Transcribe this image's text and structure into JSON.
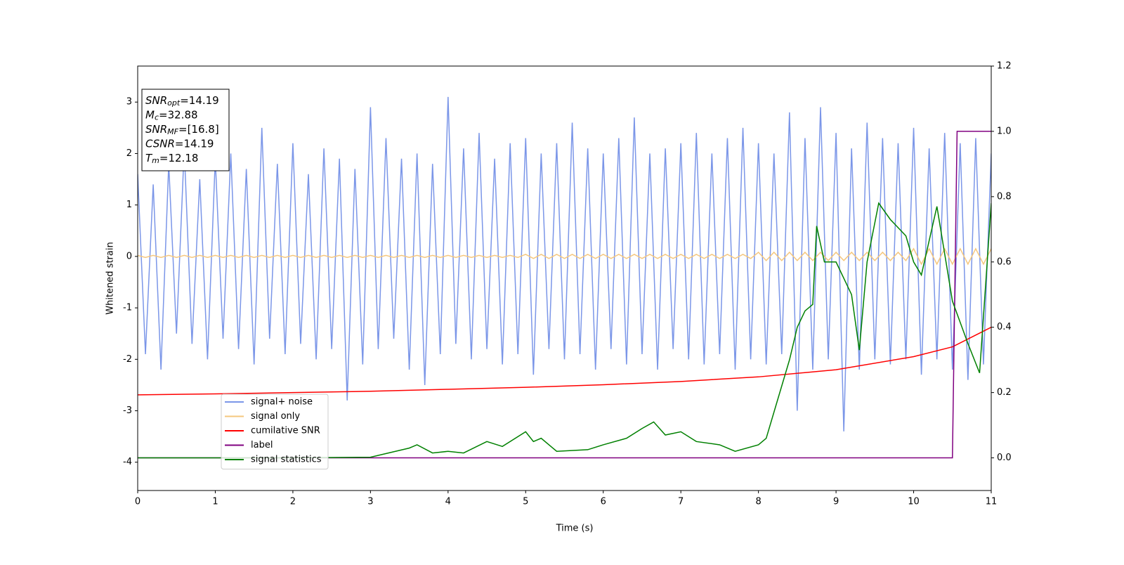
{
  "chart_data": {
    "type": "line",
    "xlabel": "Time (s)",
    "ylabel": "Whitened strain",
    "xlim": [
      0,
      11
    ],
    "xticks": [
      0,
      1,
      2,
      3,
      4,
      5,
      6,
      7,
      8,
      9,
      10,
      11
    ],
    "ylim": [
      -4.55,
      3.7
    ],
    "yticks": [
      -4,
      -3,
      -2,
      -1,
      0,
      1,
      2,
      3
    ],
    "y2lim": [
      -0.1,
      1.2
    ],
    "y2ticks": [
      {
        "value": 0,
        "label": "0.0"
      },
      0.2,
      0.4,
      0.6,
      0.8,
      {
        "value": 1,
        "label": "1.0"
      },
      1.2
    ],
    "legend": "lower left",
    "annotations": [
      {
        "base": "SNR",
        "sub": "opt",
        "text": "=14.19"
      },
      {
        "base": "M",
        "sub": "c",
        "text": "=32.88"
      },
      {
        "base": "SNR",
        "sub": "MF",
        "text": "=[16.8]"
      },
      {
        "base": "CSNR",
        "text": "=14.19"
      },
      {
        "base": "T",
        "sub": "m",
        "text": "=12.18"
      }
    ],
    "x": [
      0,
      0.1,
      0.2,
      0.3,
      0.4,
      0.5,
      0.6,
      0.7,
      0.8,
      0.9,
      1,
      1.1,
      1.2,
      1.3,
      1.4,
      1.5,
      1.6,
      1.7,
      1.8,
      1.9,
      2,
      2.1,
      2.2,
      2.3,
      2.4,
      2.5,
      2.6,
      2.7,
      2.8,
      2.9,
      3,
      3.1,
      3.2,
      3.3,
      3.4,
      3.5,
      3.6,
      3.7,
      3.8,
      3.9,
      4,
      4.1,
      4.2,
      4.3,
      4.4,
      4.5,
      4.6,
      4.7,
      4.8,
      4.9,
      5,
      5.1,
      5.2,
      5.3,
      5.4,
      5.5,
      5.6,
      5.7,
      5.8,
      5.9,
      6,
      6.1,
      6.2,
      6.3,
      6.4,
      6.5,
      6.6,
      6.7,
      6.8,
      6.9,
      7,
      7.1,
      7.2,
      7.3,
      7.4,
      7.5,
      7.6,
      7.7,
      7.8,
      7.9,
      8,
      8.1,
      8.2,
      8.3,
      8.4,
      8.5,
      8.6,
      8.7,
      8.8,
      8.9,
      9,
      9.1,
      9.2,
      9.3,
      9.4,
      9.5,
      9.6,
      9.7,
      9.8,
      9.9,
      10,
      10.1,
      10.2,
      10.3,
      10.4,
      10.5,
      10.6,
      10.7,
      10.8,
      10.9,
      11
    ],
    "series": [
      {
        "name": "signal+ noise",
        "color": "#7b96e8",
        "values": [
          1.6,
          -1.9,
          1.4,
          -2.2,
          1.8,
          -1.5,
          2.1,
          -1.7,
          1.5,
          -2.0,
          1.9,
          -1.6,
          2.0,
          -1.8,
          1.7,
          -2.1,
          2.5,
          -1.6,
          1.8,
          -1.9,
          2.2,
          -1.7,
          1.6,
          -2.0,
          2.1,
          -1.8,
          1.9,
          -2.8,
          1.7,
          -2.1,
          2.9,
          -1.8,
          2.3,
          -1.6,
          1.9,
          -2.2,
          2.0,
          -2.5,
          1.8,
          -1.9,
          3.1,
          -1.7,
          2.1,
          -2.0,
          2.4,
          -1.8,
          1.9,
          -2.1,
          2.2,
          -1.9,
          2.3,
          -2.3,
          2.0,
          -1.8,
          2.2,
          -2.0,
          2.6,
          -1.9,
          2.1,
          -2.2,
          2.0,
          -1.8,
          2.3,
          -2.1,
          2.7,
          -1.9,
          2.0,
          -2.2,
          2.1,
          -1.8,
          2.2,
          -2.0,
          2.4,
          -2.1,
          2.0,
          -1.9,
          2.3,
          -2.2,
          2.5,
          -2.0,
          2.2,
          -2.1,
          2.0,
          -1.9,
          2.8,
          -3.0,
          2.3,
          -2.2,
          2.9,
          -2.0,
          2.4,
          -3.4,
          2.1,
          -2.2,
          2.6,
          -2.0,
          2.3,
          -2.1,
          2.2,
          -2.0,
          2.5,
          -2.3,
          2.1,
          -2.0,
          2.4,
          -2.2,
          2.2,
          -2.4,
          2.3,
          -2.1,
          2.0
        ]
      },
      {
        "name": "signal only",
        "color": "#f5c77e",
        "values": [
          0.02,
          -0.02,
          0.02,
          -0.02,
          0.02,
          -0.02,
          0.02,
          -0.02,
          0.02,
          -0.02,
          0.02,
          -0.02,
          0.02,
          -0.02,
          0.02,
          -0.02,
          0.02,
          -0.02,
          0.02,
          -0.02,
          0.02,
          -0.02,
          0.02,
          -0.02,
          0.02,
          -0.02,
          0.02,
          -0.02,
          0.02,
          -0.02,
          0.02,
          -0.02,
          0.02,
          -0.02,
          0.02,
          -0.02,
          0.02,
          -0.02,
          0.02,
          -0.02,
          0.02,
          -0.02,
          0.02,
          -0.02,
          0.02,
          -0.02,
          0.02,
          -0.02,
          0.02,
          -0.02,
          0.04,
          -0.04,
          0.04,
          -0.04,
          0.04,
          -0.04,
          0.04,
          -0.04,
          0.04,
          -0.04,
          0.04,
          -0.04,
          0.04,
          -0.04,
          0.04,
          -0.04,
          0.04,
          -0.04,
          0.04,
          -0.04,
          0.04,
          -0.04,
          0.04,
          -0.04,
          0.04,
          -0.04,
          0.04,
          -0.04,
          0.04,
          -0.04,
          0.08,
          -0.08,
          0.08,
          -0.08,
          0.08,
          -0.08,
          0.08,
          -0.08,
          0.08,
          -0.08,
          0.08,
          -0.08,
          0.08,
          -0.08,
          0.08,
          -0.08,
          0.08,
          -0.08,
          0.08,
          -0.08,
          0.15,
          -0.15,
          0.15,
          -0.15,
          0.15,
          -0.15,
          0.15,
          -0.15,
          0.15,
          -0.15,
          0.15
        ]
      },
      {
        "name": "cumilative SNR",
        "color": "#ff0000",
        "axis": "y2",
        "x": [
          0,
          1,
          2,
          3,
          4,
          5,
          6,
          7,
          8,
          9,
          10,
          10.5,
          11
        ],
        "values": [
          0.193,
          0.196,
          0.2,
          0.204,
          0.21,
          0.216,
          0.224,
          0.234,
          0.248,
          0.27,
          0.31,
          0.34,
          0.4
        ]
      },
      {
        "name": "label",
        "color": "#800080",
        "axis": "y2",
        "x": [
          0,
          10.5,
          10.56,
          11
        ],
        "values": [
          0,
          0,
          1,
          1
        ]
      },
      {
        "name": "signal statistics",
        "color": "#008000",
        "axis": "y2",
        "x": [
          0,
          1,
          2,
          3,
          3.5,
          3.6,
          3.8,
          4,
          4.2,
          4.5,
          4.7,
          5,
          5.1,
          5.2,
          5.4,
          5.8,
          6,
          6.3,
          6.5,
          6.65,
          6.8,
          7,
          7.2,
          7.5,
          7.7,
          8,
          8.1,
          8.2,
          8.4,
          8.5,
          8.6,
          8.7,
          8.75,
          8.85,
          9,
          9.2,
          9.3,
          9.4,
          9.55,
          9.7,
          9.9,
          10,
          10.1,
          10.3,
          10.5,
          10.7,
          10.85,
          11
        ],
        "values": [
          0,
          0,
          0,
          0.002,
          0.03,
          0.04,
          0.015,
          0.02,
          0.015,
          0.05,
          0.035,
          0.08,
          0.05,
          0.06,
          0.02,
          0.025,
          0.04,
          0.06,
          0.09,
          0.11,
          0.07,
          0.08,
          0.05,
          0.04,
          0.02,
          0.04,
          0.06,
          0.14,
          0.3,
          0.4,
          0.45,
          0.47,
          0.71,
          0.6,
          0.6,
          0.5,
          0.33,
          0.6,
          0.78,
          0.73,
          0.68,
          0.6,
          0.56,
          0.77,
          0.48,
          0.35,
          0.26,
          0.78
        ]
      }
    ]
  }
}
